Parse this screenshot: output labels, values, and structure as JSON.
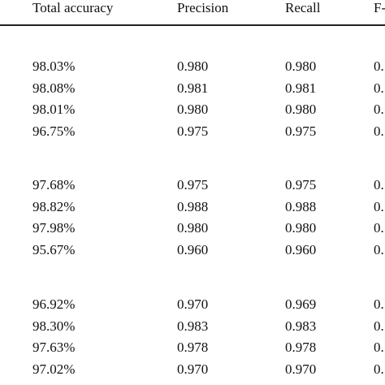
{
  "table": {
    "headers": [
      "Total accuracy",
      "Precision",
      "Recall",
      "F-"
    ],
    "groups": [
      {
        "rows": [
          [
            "98.03%",
            "0.980",
            "0.980",
            "0."
          ],
          [
            "98.08%",
            "0.981",
            "0.981",
            "0."
          ],
          [
            "98.01%",
            "0.980",
            "0.980",
            "0."
          ],
          [
            "96.75%",
            "0.975",
            "0.975",
            "0."
          ]
        ]
      },
      {
        "rows": [
          [
            "97.68%",
            "0.975",
            "0.975",
            "0."
          ],
          [
            "98.82%",
            "0.988",
            "0.988",
            "0."
          ],
          [
            "97.98%",
            "0.980",
            "0.980",
            "0."
          ],
          [
            "95.67%",
            "0.960",
            "0.960",
            "0."
          ]
        ]
      },
      {
        "rows": [
          [
            "96.92%",
            "0.970",
            "0.969",
            "0."
          ],
          [
            "98.30%",
            "0.983",
            "0.983",
            "0."
          ],
          [
            "97.63%",
            "0.978",
            "0.978",
            "0."
          ],
          [
            "97.02%",
            "0.970",
            "0.970",
            "0."
          ]
        ]
      }
    ]
  }
}
